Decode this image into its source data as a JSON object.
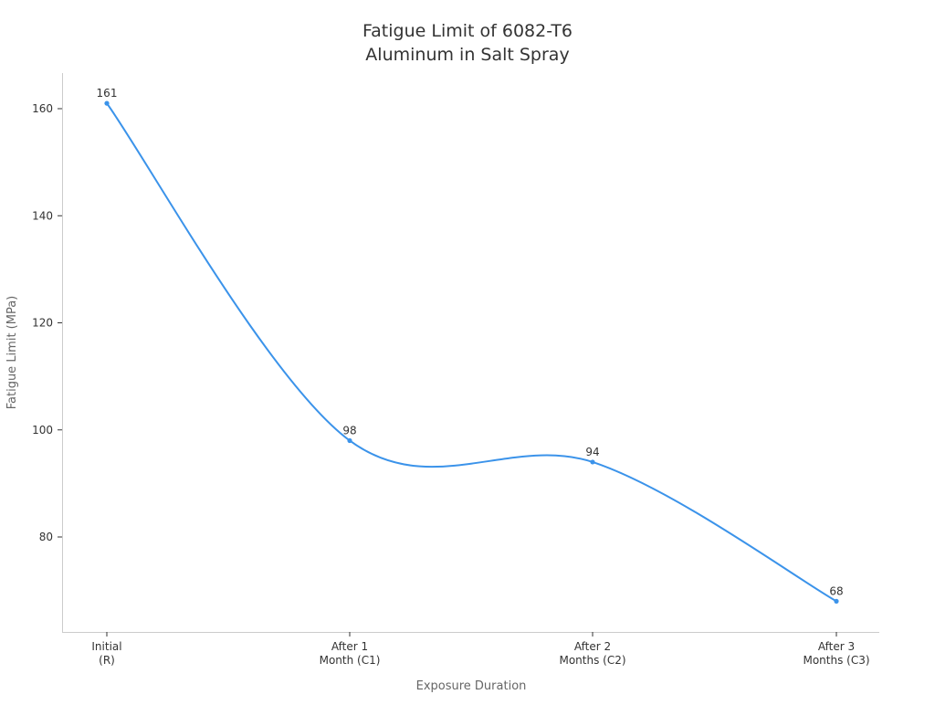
{
  "chart_data": {
    "type": "line",
    "title_lines": [
      "Fatigue Limit of 6082-T6",
      "Aluminum in Salt Spray"
    ],
    "xlabel": "Exposure Duration",
    "ylabel": "Fatigue Limit (MPa)",
    "categories": [
      [
        "Initial",
        "(R)"
      ],
      [
        "After 1",
        "Month (C1)"
      ],
      [
        "After 2",
        "Months (C2)"
      ],
      [
        "After 3",
        "Months (C3)"
      ]
    ],
    "values": [
      161,
      98,
      94,
      68
    ],
    "data_labels": [
      "161",
      "98",
      "94",
      "68"
    ],
    "yticks": [
      80,
      100,
      120,
      140,
      160
    ],
    "ylim": [
      62.3,
      166.6
    ],
    "grid": false,
    "smooth": true,
    "line_color": "#3b93ea"
  }
}
